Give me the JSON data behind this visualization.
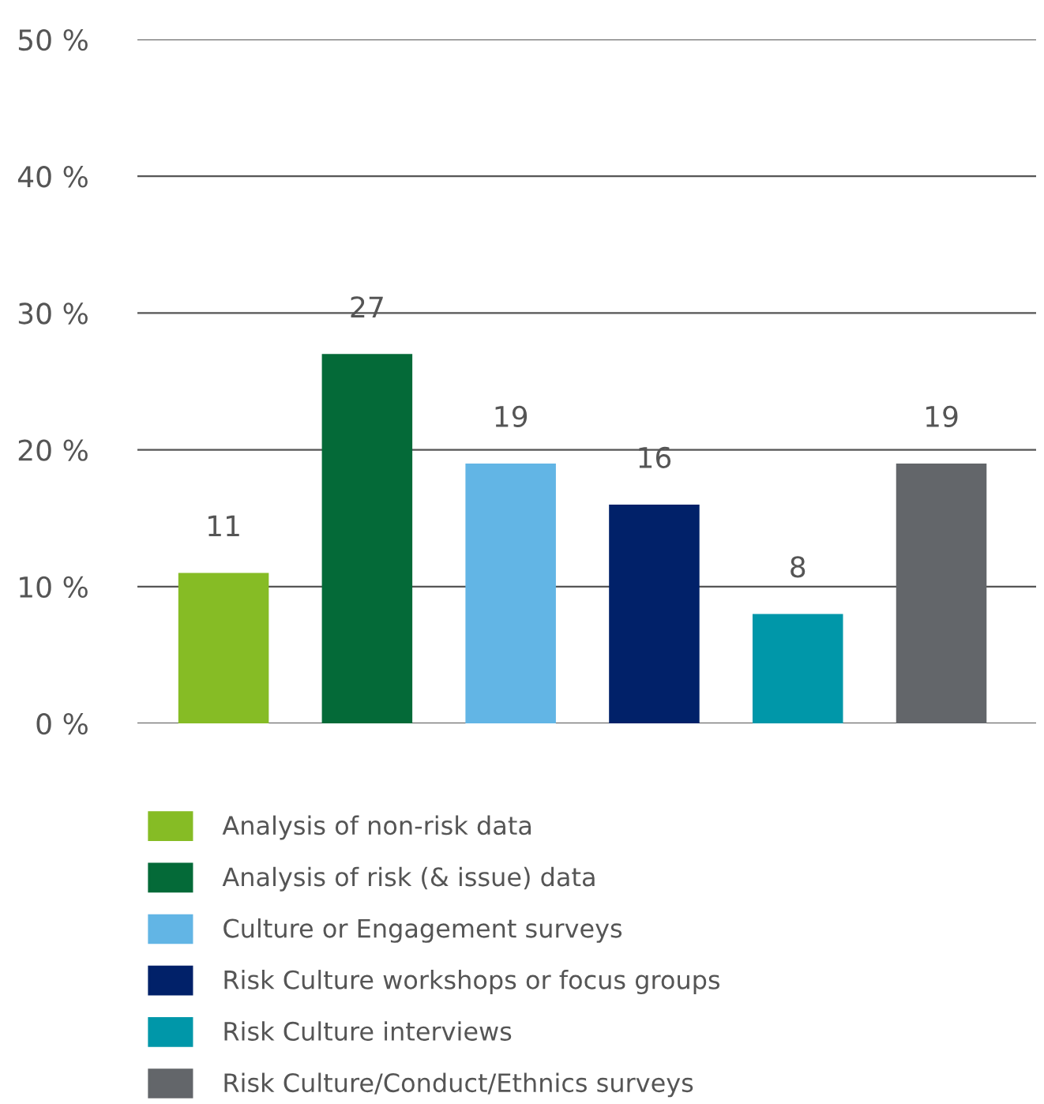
{
  "chart_data": {
    "type": "bar",
    "categories": [
      null,
      null,
      null,
      null,
      null,
      null
    ],
    "series": [
      {
        "name": "Analysis of non-risk data",
        "color": "#86bc25",
        "values": [
          11,
          null,
          null,
          null,
          null,
          null
        ]
      },
      {
        "name": "Analysis of risk (& issue) data",
        "color": "#046a38",
        "values": [
          null,
          27,
          null,
          null,
          null,
          null
        ]
      },
      {
        "name": "Culture or Engagement surveys",
        "color": "#62b5e5",
        "values": [
          null,
          null,
          19,
          null,
          null,
          null
        ]
      },
      {
        "name": "Risk Culture workshops or focus groups",
        "color": "#012169",
        "values": [
          null,
          null,
          null,
          16,
          null,
          null
        ]
      },
      {
        "name": "Risk Culture interviews",
        "color": "#0097a9",
        "values": [
          null,
          null,
          null,
          null,
          8,
          null
        ]
      },
      {
        "name": "Risk Culture/Conduct/Ethnics surveys",
        "color": "#63666a",
        "values": [
          null,
          null,
          null,
          null,
          null,
          19
        ]
      }
    ],
    "ylim": [
      0,
      50
    ],
    "yticks": [
      {
        "value": 0,
        "label": "0 %"
      },
      {
        "value": 10,
        "label": "10 %"
      },
      {
        "value": 20,
        "label": "20 %"
      },
      {
        "value": 30,
        "label": "30 %"
      },
      {
        "value": 40,
        "label": "40 %"
      },
      {
        "value": 50,
        "label": "50 %"
      }
    ],
    "grid": "y",
    "data_labels": true,
    "legend": "bottom"
  }
}
